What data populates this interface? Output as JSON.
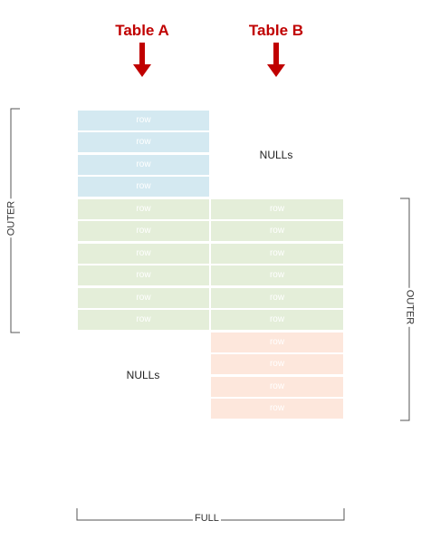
{
  "headers": {
    "table_a": "Table A",
    "table_b": "Table B"
  },
  "cell_label": "row",
  "nulls_label": "NULLs",
  "brackets": {
    "left_outer": "OUTER",
    "right_outer": "OUTER",
    "full": "FULL"
  },
  "colors": {
    "header": "#c00000",
    "a_only": "#d4e9f1",
    "matched": "#e4eed9",
    "b_only": "#fde7dc"
  },
  "rows": {
    "a_only_count": 4,
    "matched_count": 6,
    "b_only_count": 4
  }
}
